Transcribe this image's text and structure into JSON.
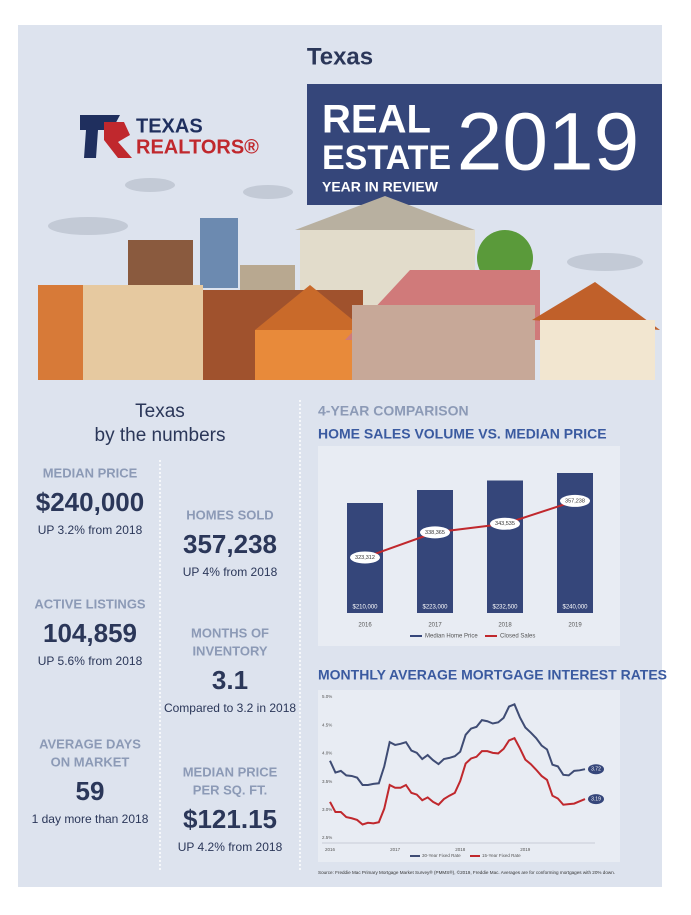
{
  "header": {
    "title": "Texas",
    "logo": [
      "TEXAS",
      "REALTORS®"
    ],
    "banner": {
      "line1": "REAL",
      "line2": "ESTATE",
      "line3": "YEAR IN REVIEW",
      "year": "2019"
    }
  },
  "stats": {
    "title": [
      "Texas",
      "by the numbers"
    ],
    "items": [
      {
        "label": [
          "MEDIAN PRICE"
        ],
        "value": "$240,000",
        "note": "UP 3.2% from 2018"
      },
      {
        "label": [
          "ACTIVE LISTINGS"
        ],
        "value": "104,859",
        "note": "UP 5.6% from 2018"
      },
      {
        "label": [
          "AVERAGE DAYS",
          "ON MARKET"
        ],
        "value": "59",
        "note": "1 day more than 2018"
      },
      {
        "label": [
          "HOMES SOLD"
        ],
        "value": "357,238",
        "note": "UP 4% from 2018"
      },
      {
        "label": [
          "MONTHS OF",
          "INVENTORY"
        ],
        "value": "3.1",
        "note": "Compared to 3.2 in 2018"
      },
      {
        "label": [
          "MEDIAN PRICE",
          "PER SQ. FT."
        ],
        "value": "$121.15",
        "note": "UP 4.2% from 2018"
      }
    ]
  },
  "chart_data": [
    {
      "type": "bar",
      "subtitle": "4-YEAR COMPARISON",
      "title": "HOME SALES VOLUME VS. MEDIAN PRICE",
      "categories": [
        "2016",
        "2017",
        "2018",
        "2019"
      ],
      "ylim": [
        100000,
        250000
      ],
      "y2lim": [
        290000,
        380000
      ],
      "series": [
        {
          "name": "Median Home Price",
          "color": "#35467a",
          "values": [
            210000,
            223000,
            232500,
            240000
          ],
          "value_labels": [
            "$210,000",
            "$223,000",
            "$232,500",
            "$240,000"
          ]
        },
        {
          "name": "Closed Sales",
          "color": "#c0282d",
          "type": "line",
          "axis": "y2",
          "values": [
            323312,
            338365,
            343535,
            357238
          ],
          "value_labels": [
            "323,312",
            "338,365",
            "343,535",
            "357,238"
          ]
        }
      ]
    },
    {
      "type": "line",
      "title": "MONTHLY AVERAGE MORTGAGE INTEREST RATES",
      "categories": [
        "2016",
        null,
        null,
        null,
        null,
        null,
        null,
        null,
        null,
        null,
        null,
        null,
        "2017",
        null,
        null,
        null,
        null,
        null,
        null,
        null,
        null,
        null,
        null,
        null,
        "2018",
        null,
        null,
        null,
        null,
        null,
        null,
        null,
        null,
        null,
        null,
        null,
        "2019",
        null,
        null,
        null,
        null,
        null,
        null,
        null,
        null,
        null,
        null,
        null
      ],
      "ylim": [
        2.5,
        5.0
      ],
      "yticks": [
        {
          "value": 5.0,
          "label": "5.0%"
        },
        {
          "value": 4.5,
          "label": "4.5%"
        },
        {
          "value": 4.0,
          "label": "4.0%"
        },
        {
          "value": 3.5,
          "label": "3.5%"
        },
        {
          "value": 3.0,
          "label": "3.0%"
        },
        {
          "value": 2.5,
          "label": "2.5%"
        }
      ],
      "series": [
        {
          "name": "30-Year Fixed Rate",
          "color": "#3f4c74",
          "values": [
            3.87,
            3.66,
            3.69,
            3.61,
            3.6,
            3.57,
            3.44,
            3.44,
            3.46,
            3.47,
            3.77,
            4.2,
            4.15,
            4.17,
            4.2,
            4.05,
            4.01,
            3.9,
            3.97,
            3.88,
            3.81,
            3.9,
            3.92,
            3.95,
            4.03,
            4.33,
            4.44,
            4.47,
            4.59,
            4.57,
            4.53,
            4.55,
            4.63,
            4.83,
            4.87,
            4.64,
            4.46,
            4.37,
            4.27,
            4.14,
            4.07,
            3.8,
            3.77,
            3.62,
            3.61,
            3.69,
            3.7,
            3.72
          ]
        },
        {
          "name": "15-Year Fixed Rate",
          "color": "#c0282d",
          "values": [
            3.14,
            2.96,
            2.96,
            2.87,
            2.85,
            2.82,
            2.74,
            2.77,
            2.76,
            2.78,
            3.02,
            3.44,
            3.39,
            3.39,
            3.44,
            3.3,
            3.27,
            3.17,
            3.22,
            3.14,
            3.09,
            3.19,
            3.25,
            3.3,
            3.51,
            3.82,
            3.91,
            3.94,
            4.04,
            4.04,
            4.01,
            4.0,
            4.08,
            4.23,
            4.27,
            4.09,
            3.89,
            3.81,
            3.71,
            3.6,
            3.53,
            3.25,
            3.2,
            3.09,
            3.1,
            3.11,
            3.15,
            3.19
          ]
        }
      ],
      "source": "Source: Freddie Mac Primary Mortgage Market Survey® (PMMS®), ©2019, Freddie Mac. Averages are for conforming mortgages with 20% down."
    }
  ]
}
